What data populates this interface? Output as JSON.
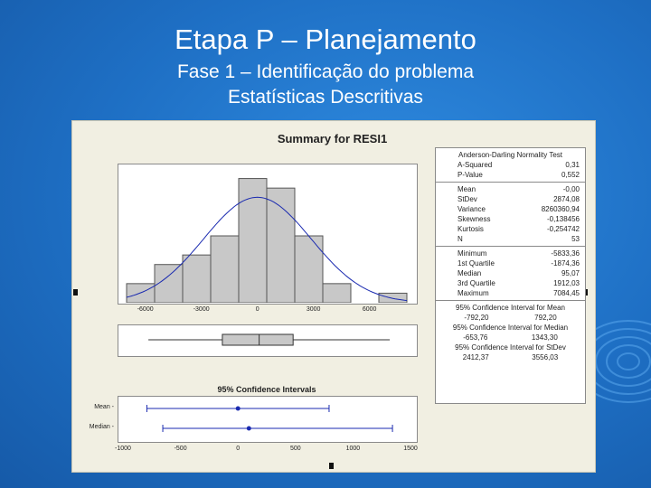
{
  "slide": {
    "title": "Etapa P – Planejamento",
    "subtitle1": "Fase 1 – Identificação do problema",
    "subtitle2": "Estatísticas Descritivas"
  },
  "chart_data": [
    {
      "type": "bar",
      "title": "Summary for RESI1",
      "x_ticks": [
        "-6000",
        "-3000",
        "0",
        "3000",
        "6000"
      ],
      "bins": [
        {
          "x0": -7000,
          "x1": -5500,
          "count": 2
        },
        {
          "x0": -5500,
          "x1": -4000,
          "count": 4
        },
        {
          "x0": -4000,
          "x1": -2500,
          "count": 5
        },
        {
          "x0": -2500,
          "x1": -1000,
          "count": 7
        },
        {
          "x0": -1000,
          "x1": 500,
          "count": 13
        },
        {
          "x0": 500,
          "x1": 2000,
          "count": 12
        },
        {
          "x0": 2000,
          "x1": 3500,
          "count": 7
        },
        {
          "x0": 3500,
          "x1": 5000,
          "count": 2
        },
        {
          "x0": 5000,
          "x1": 6500,
          "count": 0
        },
        {
          "x0": 6500,
          "x1": 8000,
          "count": 1
        }
      ],
      "normal_curve": {
        "mean": 0,
        "sd": 2874.08
      },
      "xlim": [
        -7000,
        8000
      ],
      "ylim": [
        0,
        14
      ]
    },
    {
      "type": "boxplot",
      "min": -5833.36,
      "q1": -1874.36,
      "median": 95.07,
      "q3": 1912.03,
      "max": 7084.45,
      "xlim": [
        -7000,
        8000
      ]
    },
    {
      "type": "interval",
      "title": "95% Confidence Intervals",
      "x_ticks": [
        "-1000",
        "-500",
        "0",
        "500",
        "1000",
        "1500"
      ],
      "xlim": [
        -1000,
        1500
      ],
      "intervals": [
        {
          "label": "Mean",
          "low": -792.2,
          "point": 0,
          "high": 792.2
        },
        {
          "label": "Median",
          "low": -653.76,
          "point": 95.07,
          "high": 1343.3
        }
      ]
    }
  ],
  "stats": {
    "ad_title": "Anderson-Darling Normality Test",
    "ad": [
      {
        "label": "A-Squared",
        "value": "0,31"
      },
      {
        "label": "P-Value",
        "value": "0,552"
      }
    ],
    "moments": [
      {
        "label": "Mean",
        "value": "-0,00"
      },
      {
        "label": "StDev",
        "value": "2874,08"
      },
      {
        "label": "Variance",
        "value": "8260360,94"
      },
      {
        "label": "Skewness",
        "value": "-0,138456"
      },
      {
        "label": "Kurtosis",
        "value": "-0,254742"
      },
      {
        "label": "N",
        "value": "53"
      }
    ],
    "quartiles": [
      {
        "label": "Minimum",
        "value": "-5833,36"
      },
      {
        "label": "1st Quartile",
        "value": "-1874,36"
      },
      {
        "label": "Median",
        "value": "95,07"
      },
      {
        "label": "3rd Quartile",
        "value": "1912,03"
      },
      {
        "label": "Maximum",
        "value": "7084,45"
      }
    ],
    "ci_mean_title": "95% Confidence Interval for Mean",
    "ci_mean": [
      "-792,20",
      "792,20"
    ],
    "ci_median_title": "95% Confidence Interval for Median",
    "ci_median": [
      "-653,76",
      "1343,30"
    ],
    "ci_stdev_title": "95% Confidence Interval for StDev",
    "ci_stdev": [
      "2412,37",
      "3556,03"
    ]
  }
}
